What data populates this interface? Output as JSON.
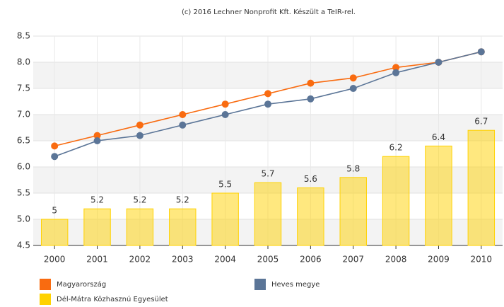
{
  "chart_data": {
    "type": "combo",
    "title": "(c) 2016 Lechner Nonprofit Kft. Készült a TeIR-rel.",
    "categories": [
      "2000",
      "2001",
      "2002",
      "2003",
      "2004",
      "2005",
      "2006",
      "2007",
      "2008",
      "2009",
      "2010"
    ],
    "ylim": [
      4.5,
      8.5
    ],
    "yticks": [
      4.5,
      {
        "value": 5,
        "label": "5.0"
      },
      5.5,
      {
        "value": 6,
        "label": "6.0"
      },
      6.5,
      {
        "value": 7,
        "label": "7.0"
      },
      7.5,
      {
        "value": 8,
        "label": "8.0"
      },
      8.5
    ],
    "grid": true,
    "alternate_bands": true,
    "legend": "bottom",
    "series": [
      {
        "name": "Magyarország",
        "type": "line",
        "color": "#f96b10",
        "values": [
          6.4,
          6.6,
          6.8,
          7.0,
          7.2,
          7.4,
          7.6,
          7.7,
          7.9,
          8.0,
          8.2
        ]
      },
      {
        "name": "Heves megye",
        "type": "line",
        "color": "#5b7597",
        "values": [
          6.2,
          6.5,
          6.6,
          6.8,
          7.0,
          7.2,
          7.3,
          7.5,
          7.8,
          8.0,
          8.2
        ]
      },
      {
        "name": "Dél-Mátra Közhasznú Egyesület",
        "type": "bar",
        "color": "#ffd200",
        "values": [
          5,
          5.2,
          5.2,
          5.2,
          5.5,
          5.7,
          5.6,
          5.8,
          6.2,
          6.4,
          6.7
        ]
      }
    ]
  }
}
